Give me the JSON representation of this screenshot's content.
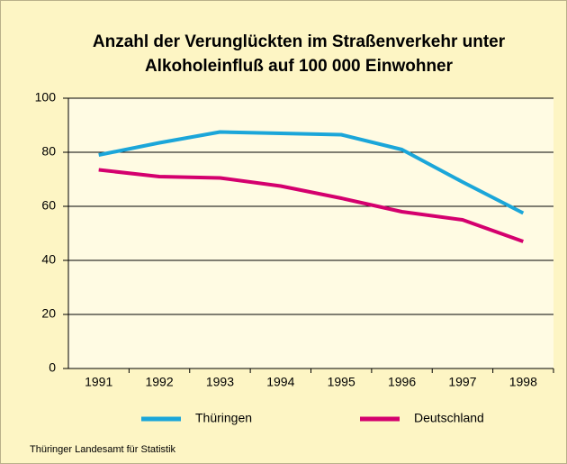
{
  "chart_data": {
    "type": "line",
    "title": [
      "Anzahl der Verunglückten im Straßenverkehr unter",
      "Alkoholeinfluß auf 100 000 Einwohner"
    ],
    "categories": [
      "1991",
      "1992",
      "1993",
      "1994",
      "1995",
      "1996",
      "1997",
      "1998"
    ],
    "series": [
      {
        "name": "Thüringen",
        "color": "#1ba6d9",
        "values": [
          79,
          83.5,
          87.5,
          87,
          86.5,
          81,
          69,
          57.5
        ]
      },
      {
        "name": "Deutschland",
        "color": "#d4006e",
        "values": [
          73.5,
          71,
          70.5,
          67.5,
          63,
          58,
          55,
          47
        ]
      }
    ],
    "ylim": [
      0,
      100
    ],
    "yticks": [
      0,
      20,
      40,
      60,
      80,
      100
    ],
    "grid": true,
    "source": "Thüringer Landesamt für Statistik"
  }
}
